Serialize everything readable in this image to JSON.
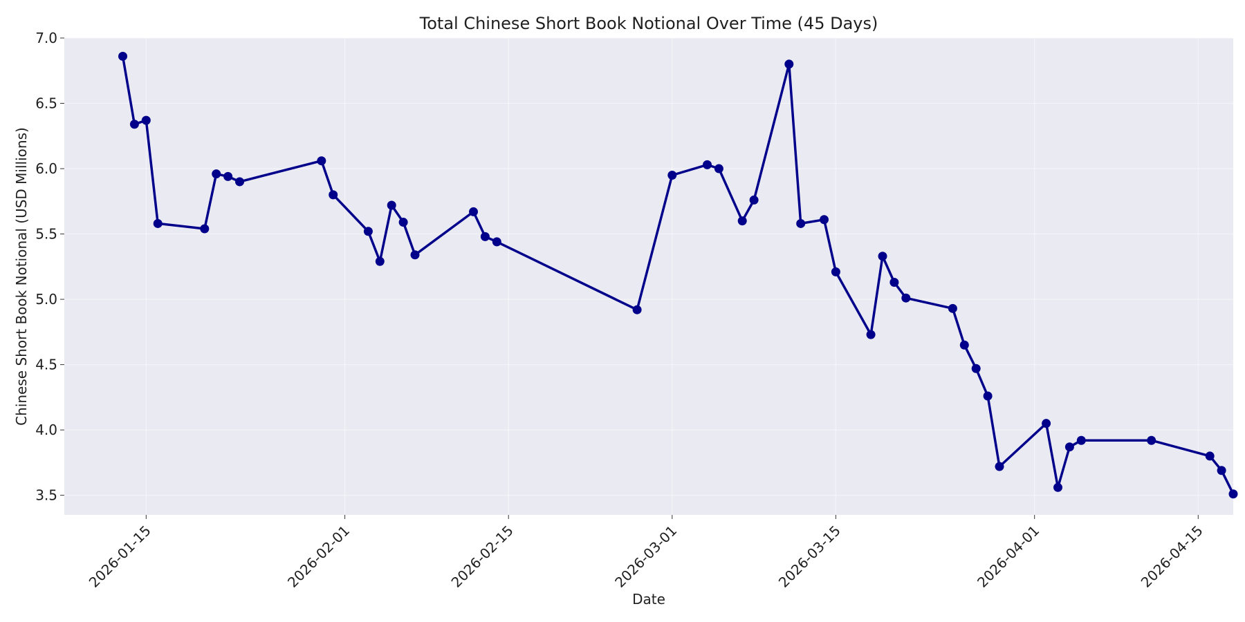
{
  "chart_data": {
    "type": "line",
    "title": "Total Chinese Short Book Notional Over Time (45 Days)",
    "xlabel": "Date",
    "ylabel": "Chinese Short Book Notional (USD Millions)",
    "ylim": [
      3.35,
      7.0
    ],
    "xlim": [
      "2026-01-08",
      "2026-04-18"
    ],
    "grid": true,
    "colors": {
      "background": "#eaeaf2",
      "series": "#00008b"
    },
    "x_ticks": [
      "2026-01-15",
      "2026-02-01",
      "2026-02-15",
      "2026-03-01",
      "2026-03-15",
      "2026-04-01",
      "2026-04-15"
    ],
    "y_ticks": [
      3.5,
      4.0,
      4.5,
      5.0,
      5.5,
      6.0,
      6.5,
      7.0
    ],
    "series": [
      {
        "x": [
          "2026-01-13",
          "2026-01-14",
          "2026-01-15",
          "2026-01-16",
          "2026-01-20",
          "2026-01-21",
          "2026-01-22",
          "2026-01-23",
          "2026-01-30",
          "2026-01-31",
          "2026-02-03",
          "2026-02-04",
          "2026-02-05",
          "2026-02-06",
          "2026-02-07",
          "2026-02-12",
          "2026-02-13",
          "2026-02-14",
          "2026-02-26",
          "2026-03-01",
          "2026-03-04",
          "2026-03-05",
          "2026-03-07",
          "2026-03-08",
          "2026-03-11",
          "2026-03-12",
          "2026-03-14",
          "2026-03-15",
          "2026-03-18",
          "2026-03-19",
          "2026-03-20",
          "2026-03-21",
          "2026-03-25",
          "2026-03-26",
          "2026-03-27",
          "2026-03-28",
          "2026-03-29",
          "2026-04-02",
          "2026-04-03",
          "2026-04-04",
          "2026-04-05",
          "2026-04-11",
          "2026-04-16",
          "2026-04-17",
          "2026-04-18"
        ],
        "values": [
          6.86,
          6.34,
          6.37,
          5.58,
          5.54,
          5.96,
          5.94,
          5.9,
          6.06,
          5.8,
          5.52,
          5.29,
          5.72,
          5.59,
          5.34,
          5.67,
          5.48,
          5.44,
          4.92,
          5.95,
          6.03,
          6.0,
          5.6,
          5.76,
          6.8,
          5.58,
          5.61,
          5.21,
          4.73,
          5.33,
          5.13,
          5.01,
          4.93,
          4.65,
          4.47,
          4.26,
          3.72,
          4.05,
          3.56,
          3.87,
          3.92,
          3.92,
          3.8,
          3.69,
          3.51
        ]
      }
    ]
  }
}
